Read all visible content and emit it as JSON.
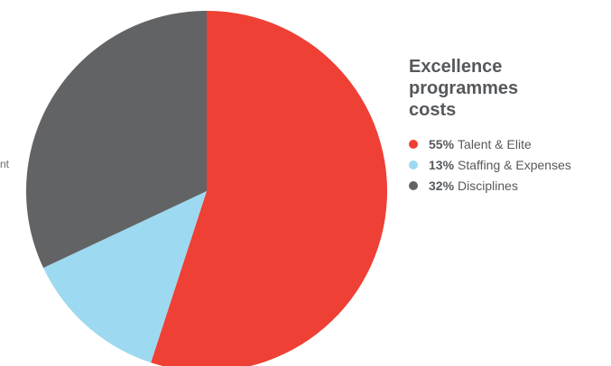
{
  "edge_label_fragment": "nt",
  "chart_data": {
    "type": "pie",
    "title": "Excellence programmes costs",
    "slices": [
      {
        "pct_label": "55%",
        "label": "Talent & Elite",
        "value": 55,
        "color": "#ee4035"
      },
      {
        "pct_label": "13%",
        "label": "Staffing & Expenses",
        "value": 13,
        "color": "#9dd9f0"
      },
      {
        "pct_label": "32%",
        "label": "Disciplines",
        "value": 32,
        "color": "#626365"
      }
    ],
    "legend_position": "right"
  }
}
